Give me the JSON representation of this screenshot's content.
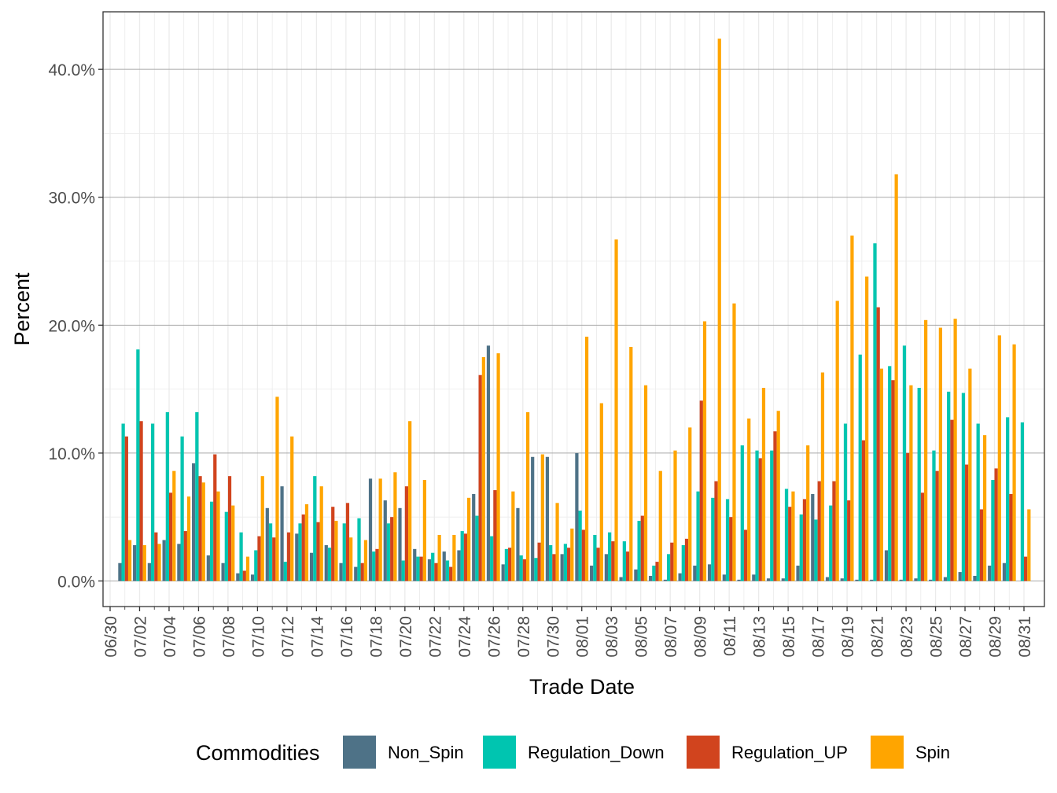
{
  "chart_data": {
    "type": "bar",
    "x_label": "Trade Date",
    "y_label": "Percent",
    "legend_title": "Commodities",
    "legend_position": "bottom",
    "grid": true,
    "categories": [
      "06/30",
      null,
      "07/02",
      null,
      "07/04",
      null,
      "07/06",
      null,
      "07/08",
      null,
      "07/10",
      null,
      "07/12",
      null,
      "07/14",
      null,
      "07/16",
      null,
      "07/18",
      null,
      "07/20",
      null,
      "07/22",
      null,
      "07/24",
      null,
      "07/26",
      null,
      "07/28",
      null,
      "07/30",
      null,
      "08/01",
      null,
      "08/03",
      null,
      "08/05",
      null,
      "08/07",
      null,
      "08/09",
      null,
      "08/11",
      null,
      "08/13",
      null,
      "08/15",
      null,
      "08/17",
      null,
      "08/19",
      null,
      "08/21",
      null,
      "08/23",
      null,
      "08/25",
      null,
      "08/27",
      null,
      "08/29",
      null,
      "08/31"
    ],
    "series": [
      {
        "name": "Non_Spin",
        "color": "#4e7287",
        "values": [
          null,
          1.4,
          2.8,
          1.4,
          3.2,
          2.9,
          9.2,
          2.0,
          1.4,
          0.6,
          0.5,
          5.7,
          7.4,
          3.7,
          2.2,
          2.8,
          1.4,
          1.1,
          8.0,
          6.3,
          5.7,
          2.5,
          1.7,
          2.3,
          2.4,
          6.8,
          18.4,
          1.3,
          5.7,
          9.7,
          9.7,
          2.1,
          10.0,
          1.2,
          2.1,
          0.3,
          0.9,
          0.4,
          0.1,
          0.6,
          1.2,
          1.3,
          0.5,
          0.1,
          0.5,
          0.2,
          0.2,
          1.2,
          6.8,
          0.3,
          0.2,
          0.1,
          0.1,
          2.4,
          0.1,
          0.2,
          0.1,
          0.3,
          0.7,
          0.4,
          1.2,
          1.4,
          0.0
        ]
      },
      {
        "name": "Regulation_Down",
        "color": "#00c5b0",
        "values": [
          null,
          12.3,
          18.1,
          12.3,
          13.2,
          11.3,
          13.2,
          6.2,
          5.4,
          3.8,
          2.4,
          4.5,
          1.5,
          4.5,
          8.2,
          2.6,
          4.5,
          4.9,
          2.3,
          4.5,
          1.6,
          1.9,
          2.2,
          1.6,
          3.9,
          5.1,
          3.5,
          2.5,
          2.0,
          1.8,
          2.8,
          2.9,
          5.5,
          3.6,
          3.8,
          3.1,
          4.7,
          1.2,
          2.1,
          2.8,
          7.0,
          6.5,
          6.4,
          10.6,
          10.2,
          10.2,
          7.2,
          5.2,
          4.8,
          5.9,
          12.3,
          17.7,
          26.4,
          16.8,
          18.4,
          15.1,
          10.2,
          14.8,
          14.7,
          12.3,
          7.9,
          12.8,
          12.4
        ]
      },
      {
        "name": "Regulation_UP",
        "color": "#d1441e",
        "values": [
          null,
          11.3,
          12.5,
          3.8,
          6.9,
          3.9,
          8.2,
          9.9,
          8.2,
          0.8,
          3.5,
          3.4,
          3.8,
          5.2,
          4.6,
          5.8,
          6.1,
          1.4,
          2.5,
          5.0,
          7.4,
          1.9,
          1.4,
          1.1,
          3.7,
          16.1,
          7.1,
          2.6,
          1.7,
          3.0,
          2.1,
          2.6,
          4.0,
          2.6,
          3.1,
          2.3,
          5.1,
          1.5,
          3.0,
          3.3,
          14.1,
          7.8,
          5.0,
          4.0,
          9.6,
          11.7,
          5.8,
          6.4,
          7.8,
          7.8,
          6.3,
          11.0,
          21.4,
          15.7,
          10.0,
          6.9,
          8.6,
          12.6,
          9.1,
          5.6,
          8.8,
          6.8,
          1.9
        ]
      },
      {
        "name": "Spin",
        "color": "#ffa500",
        "values": [
          null,
          3.2,
          2.8,
          2.9,
          8.6,
          6.6,
          7.7,
          7.0,
          5.9,
          1.9,
          8.2,
          14.4,
          11.3,
          6.0,
          7.4,
          4.7,
          3.4,
          3.2,
          8.0,
          8.5,
          12.5,
          7.9,
          3.6,
          3.6,
          6.5,
          17.5,
          17.8,
          7.0,
          13.2,
          9.9,
          6.1,
          4.1,
          19.1,
          13.9,
          26.7,
          18.3,
          15.3,
          8.6,
          10.2,
          12.0,
          20.3,
          42.4,
          21.7,
          12.7,
          15.1,
          13.3,
          7.0,
          10.6,
          16.3,
          21.9,
          27.0,
          23.8,
          16.6,
          31.8,
          15.3,
          20.4,
          19.8,
          20.5,
          16.6,
          11.4,
          19.2,
          18.5,
          5.6
        ]
      }
    ],
    "ylim": [
      -2.0,
      44.5
    ],
    "yticks": [
      {
        "value": 0,
        "label": "0.0%"
      },
      {
        "value": 10,
        "label": "10.0%"
      },
      {
        "value": 20,
        "label": "20.0%"
      },
      {
        "value": 30,
        "label": "30.0%"
      },
      {
        "value": 40,
        "label": "40.0%"
      }
    ]
  }
}
